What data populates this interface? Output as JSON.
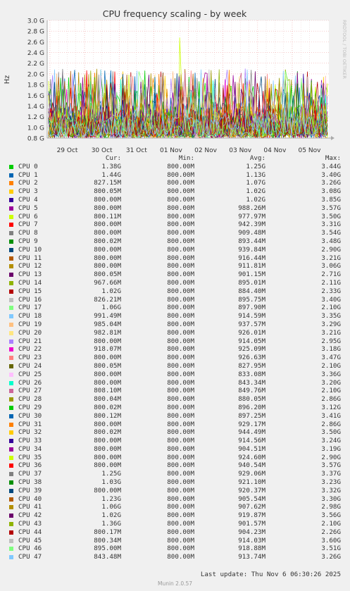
{
  "chart_data": {
    "type": "line",
    "title": "CPU frequency scaling - by week",
    "ylabel": "Hz",
    "side_label": "RRDTOOL / TOBI OETIKER",
    "ylim": [
      800000000,
      3000000000
    ],
    "y_ticks": [
      "3.0 G",
      "2.8 G",
      "2.6 G",
      "2.4 G",
      "2.2 G",
      "2.0 G",
      "1.8 G",
      "1.6 G",
      "1.4 G",
      "1.2 G",
      "1.0 G",
      "0.8 G"
    ],
    "x_ticks": [
      "29 Oct",
      "30 Oct",
      "31 Oct",
      "01 Nov",
      "02 Nov",
      "03 Nov",
      "04 Nov",
      "05 Nov"
    ],
    "grid": true,
    "legend_headers": {
      "cur": "Cur:",
      "min": "Min:",
      "avg": "Avg:",
      "max": "Max:"
    },
    "series": [
      {
        "name": "CPU 0",
        "color": "#00cc00",
        "cur": "1.38G",
        "min": "800.00M",
        "avg": "1.25G",
        "max": "3.44G"
      },
      {
        "name": "CPU 1",
        "color": "#0066b3",
        "cur": "1.44G",
        "min": "800.00M",
        "avg": "1.13G",
        "max": "3.40G"
      },
      {
        "name": "CPU 2",
        "color": "#ff8000",
        "cur": "827.15M",
        "min": "800.00M",
        "avg": "1.07G",
        "max": "3.26G"
      },
      {
        "name": "CPU 3",
        "color": "#ffcc00",
        "cur": "800.05M",
        "min": "800.00M",
        "avg": "1.02G",
        "max": "3.08G"
      },
      {
        "name": "CPU 4",
        "color": "#330099",
        "cur": "800.00M",
        "min": "800.00M",
        "avg": "1.02G",
        "max": "3.85G"
      },
      {
        "name": "CPU 5",
        "color": "#990099",
        "cur": "800.00M",
        "min": "800.00M",
        "avg": "988.26M",
        "max": "3.57G"
      },
      {
        "name": "CPU 6",
        "color": "#ccff00",
        "cur": "800.11M",
        "min": "800.00M",
        "avg": "977.97M",
        "max": "3.50G"
      },
      {
        "name": "CPU 7",
        "color": "#ff0000",
        "cur": "800.00M",
        "min": "800.00M",
        "avg": "942.39M",
        "max": "3.31G"
      },
      {
        "name": "CPU 8",
        "color": "#808080",
        "cur": "800.00M",
        "min": "800.00M",
        "avg": "909.48M",
        "max": "3.54G"
      },
      {
        "name": "CPU 9",
        "color": "#008f00",
        "cur": "800.02M",
        "min": "800.00M",
        "avg": "893.44M",
        "max": "3.48G"
      },
      {
        "name": "CPU 10",
        "color": "#00487d",
        "cur": "800.00M",
        "min": "800.00M",
        "avg": "939.84M",
        "max": "2.90G"
      },
      {
        "name": "CPU 11",
        "color": "#b35a00",
        "cur": "800.00M",
        "min": "800.00M",
        "avg": "916.44M",
        "max": "3.21G"
      },
      {
        "name": "CPU 12",
        "color": "#b38f00",
        "cur": "800.00M",
        "min": "800.00M",
        "avg": "911.81M",
        "max": "3.06G"
      },
      {
        "name": "CPU 13",
        "color": "#6b006b",
        "cur": "800.05M",
        "min": "800.00M",
        "avg": "901.15M",
        "max": "2.71G"
      },
      {
        "name": "CPU 14",
        "color": "#8fb300",
        "cur": "967.66M",
        "min": "800.00M",
        "avg": "895.01M",
        "max": "2.11G"
      },
      {
        "name": "CPU 15",
        "color": "#b30000",
        "cur": "1.02G",
        "min": "800.00M",
        "avg": "884.40M",
        "max": "2.33G"
      },
      {
        "name": "CPU 16",
        "color": "#bebebe",
        "cur": "826.21M",
        "min": "800.00M",
        "avg": "895.75M",
        "max": "3.40G"
      },
      {
        "name": "CPU 17",
        "color": "#80ff80",
        "cur": "1.06G",
        "min": "800.00M",
        "avg": "897.90M",
        "max": "2.10G"
      },
      {
        "name": "CPU 18",
        "color": "#80c9ff",
        "cur": "991.49M",
        "min": "800.00M",
        "avg": "914.59M",
        "max": "3.35G"
      },
      {
        "name": "CPU 19",
        "color": "#ffc080",
        "cur": "985.04M",
        "min": "800.00M",
        "avg": "937.57M",
        "max": "3.29G"
      },
      {
        "name": "CPU 20",
        "color": "#ffe680",
        "cur": "982.81M",
        "min": "800.00M",
        "avg": "926.01M",
        "max": "3.21G"
      },
      {
        "name": "CPU 21",
        "color": "#aa80ff",
        "cur": "800.00M",
        "min": "800.00M",
        "avg": "914.05M",
        "max": "2.95G"
      },
      {
        "name": "CPU 22",
        "color": "#ee00cc",
        "cur": "918.07M",
        "min": "800.00M",
        "avg": "925.09M",
        "max": "3.18G"
      },
      {
        "name": "CPU 23",
        "color": "#ff8080",
        "cur": "800.00M",
        "min": "800.00M",
        "avg": "926.63M",
        "max": "3.47G"
      },
      {
        "name": "CPU 24",
        "color": "#666600",
        "cur": "800.05M",
        "min": "800.00M",
        "avg": "827.95M",
        "max": "2.10G"
      },
      {
        "name": "CPU 25",
        "color": "#ffbfff",
        "cur": "800.00M",
        "min": "800.00M",
        "avg": "833.08M",
        "max": "3.36G"
      },
      {
        "name": "CPU 26",
        "color": "#00ffcc",
        "cur": "800.00M",
        "min": "800.00M",
        "avg": "843.34M",
        "max": "3.20G"
      },
      {
        "name": "CPU 27",
        "color": "#cc6699",
        "cur": "808.10M",
        "min": "800.00M",
        "avg": "849.76M",
        "max": "2.10G"
      },
      {
        "name": "CPU 28",
        "color": "#999900",
        "cur": "800.04M",
        "min": "800.00M",
        "avg": "880.05M",
        "max": "2.86G"
      },
      {
        "name": "CPU 29",
        "color": "#00cc00",
        "cur": "800.02M",
        "min": "800.00M",
        "avg": "896.20M",
        "max": "3.12G"
      },
      {
        "name": "CPU 30",
        "color": "#0066b3",
        "cur": "800.12M",
        "min": "800.00M",
        "avg": "897.25M",
        "max": "3.41G"
      },
      {
        "name": "CPU 31",
        "color": "#ff8000",
        "cur": "800.00M",
        "min": "800.00M",
        "avg": "929.17M",
        "max": "2.86G"
      },
      {
        "name": "CPU 32",
        "color": "#ffcc00",
        "cur": "800.02M",
        "min": "800.00M",
        "avg": "944.49M",
        "max": "3.50G"
      },
      {
        "name": "CPU 33",
        "color": "#330099",
        "cur": "800.00M",
        "min": "800.00M",
        "avg": "914.56M",
        "max": "3.24G"
      },
      {
        "name": "CPU 34",
        "color": "#990099",
        "cur": "800.00M",
        "min": "800.00M",
        "avg": "904.51M",
        "max": "3.19G"
      },
      {
        "name": "CPU 35",
        "color": "#ccff00",
        "cur": "800.00M",
        "min": "800.00M",
        "avg": "924.60M",
        "max": "2.90G"
      },
      {
        "name": "CPU 36",
        "color": "#ff0000",
        "cur": "800.00M",
        "min": "800.00M",
        "avg": "940.54M",
        "max": "3.57G"
      },
      {
        "name": "CPU 37",
        "color": "#808080",
        "cur": "1.25G",
        "min": "800.00M",
        "avg": "929.06M",
        "max": "3.37G"
      },
      {
        "name": "CPU 38",
        "color": "#008f00",
        "cur": "1.03G",
        "min": "800.00M",
        "avg": "921.10M",
        "max": "3.23G"
      },
      {
        "name": "CPU 39",
        "color": "#00487d",
        "cur": "800.00M",
        "min": "800.00M",
        "avg": "920.37M",
        "max": "3.32G"
      },
      {
        "name": "CPU 40",
        "color": "#b35a00",
        "cur": "1.23G",
        "min": "800.00M",
        "avg": "905.54M",
        "max": "3.30G"
      },
      {
        "name": "CPU 41",
        "color": "#b38f00",
        "cur": "1.06G",
        "min": "800.00M",
        "avg": "907.62M",
        "max": "2.98G"
      },
      {
        "name": "CPU 42",
        "color": "#6b006b",
        "cur": "1.02G",
        "min": "800.00M",
        "avg": "919.87M",
        "max": "3.56G"
      },
      {
        "name": "CPU 43",
        "color": "#8fb300",
        "cur": "1.36G",
        "min": "800.00M",
        "avg": "901.57M",
        "max": "2.10G"
      },
      {
        "name": "CPU 44",
        "color": "#b30000",
        "cur": "800.17M",
        "min": "800.00M",
        "avg": "904.23M",
        "max": "2.26G"
      },
      {
        "name": "CPU 45",
        "color": "#bebebe",
        "cur": "800.34M",
        "min": "800.00M",
        "avg": "914.03M",
        "max": "3.60G"
      },
      {
        "name": "CPU 46",
        "color": "#80ff80",
        "cur": "895.00M",
        "min": "800.00M",
        "avg": "918.88M",
        "max": "3.51G"
      },
      {
        "name": "CPU 47",
        "color": "#80c9ff",
        "cur": "843.48M",
        "min": "800.00M",
        "avg": "913.74M",
        "max": "3.26G"
      }
    ]
  },
  "footer": {
    "last_update": "Last update: Thu Nov  6 06:30:26 2025",
    "munin": "Munin 2.0.57"
  }
}
